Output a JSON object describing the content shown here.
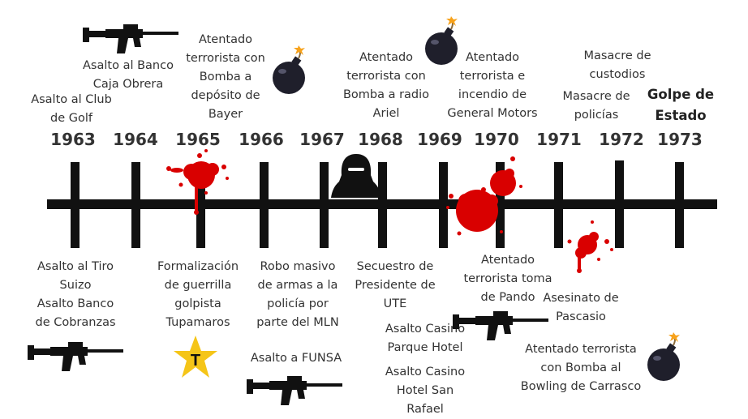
{
  "years": [
    "1963",
    "1964",
    "1965",
    "1966",
    "1967",
    "1968",
    "1969",
    "1970",
    "1971",
    "1972",
    "1973"
  ],
  "events_above": {
    "e1963": [
      "Asalto al Club",
      "de Golf"
    ],
    "e1964": [
      "Asalto al Banco",
      "Caja Obrera"
    ],
    "e1965": [
      "Atentado",
      "terrorista con",
      "Bomba a",
      "depósito de",
      "Bayer"
    ],
    "e1968": [
      "Atentado",
      "terrorista con",
      "Bomba a radio",
      "Ariel"
    ],
    "e1970": [
      "Atentado",
      "terrorista e",
      "incendio de",
      "General Motors"
    ],
    "e1972a": [
      "Masacre de",
      "custodios"
    ],
    "e1972b": [
      "Masacre de",
      "policías"
    ],
    "e1973": [
      "Golpe de",
      "Estado"
    ]
  },
  "events_below": {
    "e1963": [
      "Asalto al Tiro",
      "Suizo",
      "Asalto Banco",
      "de Cobranzas"
    ],
    "e1965": [
      "Formalización",
      "de guerrilla",
      "golpista",
      "Tupamaros"
    ],
    "e1966a": [
      "Robo masivo",
      "de armas a la",
      "policía por",
      "parte del MLN"
    ],
    "e1966b": [
      "Asalto a FUNSA"
    ],
    "e1968a": [
      "Secuestro de",
      "Presidente de",
      "UTE"
    ],
    "e1968b": [
      "Asalto Casino",
      "Parque Hotel"
    ],
    "e1968c": [
      "Asalto Casino",
      "Hotel San",
      "Rafael"
    ],
    "e1970": [
      "Atentado",
      "terrorista toma",
      "de Pando"
    ],
    "e1971": [
      "Asesinato de",
      "Pascasio"
    ],
    "e1972": [
      "Atentado terrorista",
      "con Bomba al",
      "Bowling de Carrasco"
    ]
  },
  "star_letter": "T",
  "icons": [
    "rifle-icon",
    "bomb-icon",
    "blood-splatter-icon",
    "hooded-figure-icon",
    "star-icon"
  ],
  "colors": {
    "line": "#111111",
    "blood": "#d90000",
    "star": "#f5c518",
    "bomb": "#1f1f2b"
  }
}
